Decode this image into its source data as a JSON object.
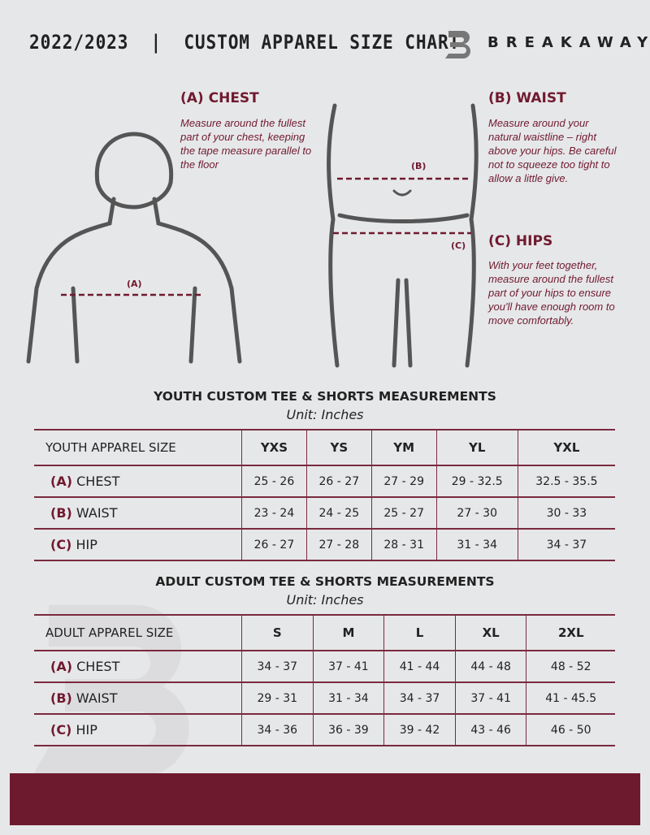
{
  "header": {
    "title": "2022/2023  |  CUSTOM APPAREL SIZE CHART",
    "brand": "BREAKAWAY"
  },
  "measures": {
    "chest": {
      "heading": "(A) CHEST",
      "text": "Measure around the fullest part of your chest, keeping the tape measure parallel to the floor",
      "marker": "(A)"
    },
    "waist": {
      "heading": "(B) WAIST",
      "text": "Measure around your natural waistline – right above your hips. Be careful not to squeeze too tight to allow a little give.",
      "marker": "(B)"
    },
    "hips": {
      "heading": "(C) HIPS",
      "text": "With your feet together, measure around the fullest part of your hips to ensure you'll have enough room to move comfortably.",
      "marker": "(C)"
    }
  },
  "youth": {
    "title": "YOUTH CUSTOM TEE & SHORTS MEASUREMENTS",
    "unit": "Unit: Inches",
    "header": "YOUTH APPAREL SIZE",
    "sizes": [
      "YXS",
      "YS",
      "YM",
      "YL",
      "YXL"
    ],
    "rows": [
      {
        "letter": "(A)",
        "label": "CHEST",
        "values": [
          "25 - 26",
          "26 - 27",
          "27 - 29",
          "29 - 32.5",
          "32.5 - 35.5"
        ]
      },
      {
        "letter": "(B)",
        "label": "WAIST",
        "values": [
          "23 - 24",
          "24 - 25",
          "25 - 27",
          "27 - 30",
          "30 - 33"
        ]
      },
      {
        "letter": "(C)",
        "label": "HIP",
        "values": [
          "26 - 27",
          "27 - 28",
          "28 - 31",
          "31 - 34",
          "34 - 37"
        ]
      }
    ]
  },
  "adult": {
    "title": "ADULT CUSTOM TEE & SHORTS MEASUREMENTS",
    "unit": "Unit: Inches",
    "header": "ADULT APPAREL SIZE",
    "sizes": [
      "S",
      "M",
      "L",
      "XL",
      "2XL"
    ],
    "rows": [
      {
        "letter": "(A)",
        "label": "CHEST",
        "values": [
          "34 - 37",
          "37 - 41",
          "41 - 44",
          "44 - 48",
          "48 - 52"
        ]
      },
      {
        "letter": "(B)",
        "label": "WAIST",
        "values": [
          "29 - 31",
          "31 - 34",
          "34 - 37",
          "37 - 41",
          "41 - 45.5"
        ]
      },
      {
        "letter": "(C)",
        "label": "HIP",
        "values": [
          "34 - 36",
          "36 - 39",
          "39 - 42",
          "43 - 46",
          "46 - 50"
        ]
      }
    ]
  },
  "colors": {
    "accent": "#6e1a2e",
    "background": "#e6e7e9"
  }
}
